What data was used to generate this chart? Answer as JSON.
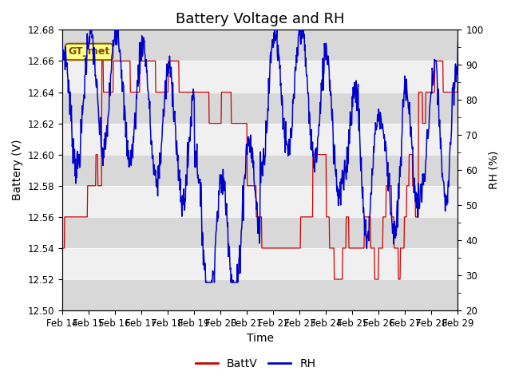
{
  "title": "Battery Voltage and RH",
  "xlabel": "Time",
  "ylabel_left": "Battery (V)",
  "ylabel_right": "RH (%)",
  "ylim_left": [
    12.5,
    12.68
  ],
  "ylim_right": [
    20,
    100
  ],
  "yticks_left": [
    12.5,
    12.52,
    12.54,
    12.56,
    12.58,
    12.6,
    12.62,
    12.64,
    12.66,
    12.68
  ],
  "yticks_right": [
    20,
    30,
    40,
    50,
    60,
    70,
    80,
    90,
    100
  ],
  "xtick_labels": [
    "Feb 14",
    "Feb 15",
    "Feb 16",
    "Feb 17",
    "Feb 18",
    "Feb 19",
    "Feb 20",
    "Feb 21",
    "Feb 22",
    "Feb 23",
    "Feb 24",
    "Feb 25",
    "Feb 26",
    "Feb 27",
    "Feb 28",
    "Feb 29"
  ],
  "station_label": "GT_met",
  "batt_color": "#cc0000",
  "rh_color": "#0000cc",
  "legend_batt": "BattV",
  "legend_rh": "RH",
  "bg_color": "#ffffff",
  "plot_bg_color": "#e8e8e8",
  "band_light": "#f0f0f0",
  "band_dark": "#d8d8d8",
  "title_fontsize": 13,
  "label_fontsize": 10,
  "tick_fontsize": 8.5
}
